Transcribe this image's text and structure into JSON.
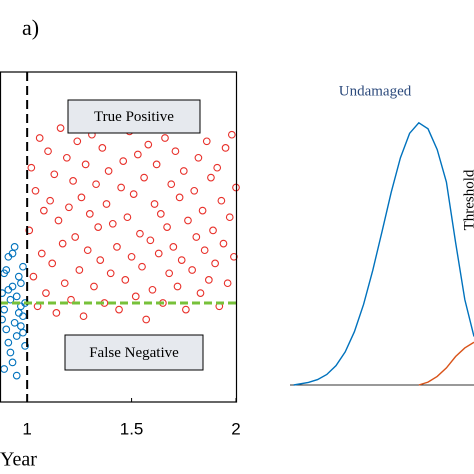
{
  "chart_data": [
    {
      "type": "scatter",
      "panel_label": "a)",
      "xlabel": "Year",
      "xlim": [
        0.87,
        2.0
      ],
      "ylim": [
        0,
        1
      ],
      "xticks": [
        1,
        1.5,
        2
      ],
      "split_x": 1,
      "threshold": 0.3,
      "threshold_color": "#77c13a",
      "annotations": [
        "True Positive",
        "False Negative"
      ],
      "series": [
        {
          "color": "#0072bd",
          "x": [
            0.88,
            0.95,
            0.91,
            0.98,
            0.89,
            0.93,
            0.97,
            0.9,
            0.94,
            0.99,
            0.92,
            0.96,
            0.88,
            0.95,
            0.91,
            0.98,
            0.89,
            0.93,
            0.97,
            0.9,
            0.94,
            0.99,
            0.92,
            0.96,
            0.89,
            0.95,
            0.91,
            0.98,
            0.93,
            0.97
          ],
          "values": [
            0.25,
            0.32,
            0.18,
            0.41,
            0.28,
            0.12,
            0.36,
            0.22,
            0.47,
            0.3,
            0.15,
            0.38,
            0.33,
            0.2,
            0.44,
            0.26,
            0.1,
            0.35,
            0.29,
            0.4,
            0.24,
            0.17,
            0.31,
            0.27,
            0.39,
            0.08,
            0.34,
            0.21,
            0.45,
            0.23
          ]
        },
        {
          "color": "#e8302a",
          "x": [
            1.01,
            1.02,
            1.03,
            1.04,
            1.05,
            1.06,
            1.07,
            1.08,
            1.09,
            1.1,
            1.11,
            1.12,
            1.13,
            1.14,
            1.15,
            1.16,
            1.17,
            1.18,
            1.19,
            1.2,
            1.21,
            1.22,
            1.23,
            1.24,
            1.25,
            1.26,
            1.27,
            1.28,
            1.29,
            1.3,
            1.31,
            1.32,
            1.33,
            1.34,
            1.35,
            1.36,
            1.37,
            1.38,
            1.39,
            1.4,
            1.41,
            1.42,
            1.43,
            1.44,
            1.45,
            1.46,
            1.47,
            1.48,
            1.49,
            1.5,
            1.51,
            1.52,
            1.53,
            1.54,
            1.55,
            1.56,
            1.57,
            1.58,
            1.59,
            1.6,
            1.61,
            1.62,
            1.63,
            1.64,
            1.65,
            1.66,
            1.67,
            1.68,
            1.69,
            1.7,
            1.71,
            1.72,
            1.73,
            1.74,
            1.75,
            1.76,
            1.77,
            1.78,
            1.79,
            1.8,
            1.81,
            1.82,
            1.83,
            1.84,
            1.85,
            1.86,
            1.87,
            1.88,
            1.89,
            1.9,
            1.91,
            1.92,
            1.93,
            1.94,
            1.95,
            1.96,
            1.97,
            1.98,
            1.99,
            2.0
          ],
          "values": [
            0.52,
            0.71,
            0.38,
            0.64,
            0.29,
            0.8,
            0.45,
            0.58,
            0.33,
            0.76,
            0.61,
            0.42,
            0.69,
            0.27,
            0.55,
            0.83,
            0.48,
            0.36,
            0.74,
            0.59,
            0.31,
            0.67,
            0.5,
            0.79,
            0.4,
            0.62,
            0.26,
            0.72,
            0.46,
            0.57,
            0.81,
            0.35,
            0.66,
            0.53,
            0.43,
            0.77,
            0.3,
            0.6,
            0.7,
            0.39,
            0.54,
            0.84,
            0.47,
            0.28,
            0.65,
            0.73,
            0.37,
            0.56,
            0.82,
            0.44,
            0.63,
            0.32,
            0.75,
            0.51,
            0.41,
            0.68,
            0.25,
            0.78,
            0.49,
            0.34,
            0.6,
            0.72,
            0.45,
            0.57,
            0.3,
            0.8,
            0.53,
            0.39,
            0.66,
            0.47,
            0.76,
            0.35,
            0.62,
            0.43,
            0.7,
            0.28,
            0.55,
            0.83,
            0.4,
            0.64,
            0.5,
            0.74,
            0.33,
            0.58,
            0.46,
            0.79,
            0.37,
            0.68,
            0.52,
            0.42,
            0.71,
            0.29,
            0.61,
            0.48,
            0.77,
            0.36,
            0.56,
            0.81,
            0.44,
            0.65
          ]
        }
      ]
    },
    {
      "type": "line",
      "xlim": [
        0,
        1
      ],
      "ylim": [
        0,
        1
      ],
      "annotations": [
        "Undamaged",
        "Threshold"
      ],
      "series": [
        {
          "color": "#0072bd",
          "x": [
            0.02,
            0.1,
            0.15,
            0.2,
            0.25,
            0.3,
            0.35,
            0.4,
            0.45,
            0.5,
            0.55,
            0.6,
            0.65,
            0.7,
            0.75,
            0.8,
            0.85,
            0.9,
            0.95,
            1.0
          ],
          "values": [
            0,
            0.009,
            0.019,
            0.037,
            0.068,
            0.116,
            0.187,
            0.283,
            0.403,
            0.538,
            0.676,
            0.797,
            0.883,
            0.92,
            0.899,
            0.826,
            0.712,
            0.5,
            0.3,
            0.17
          ]
        },
        {
          "color": "#d95319",
          "x": [
            0.7,
            0.75,
            0.8,
            0.85,
            0.9,
            0.95,
            1.0
          ],
          "values": [
            0,
            0.01,
            0.03,
            0.06,
            0.1,
            0.13,
            0.15
          ]
        }
      ]
    }
  ]
}
